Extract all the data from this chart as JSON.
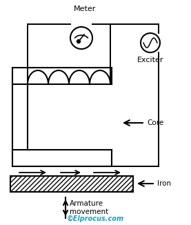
{
  "bg_color": "#ffffff",
  "line_color": "#000000",
  "cyan_color": "#1a9fbf",
  "meter_label": "Meter",
  "exciter_label": "Exciter",
  "core_label": "Core",
  "iron_label": "Iron",
  "armature_label": "Armature\nmovement",
  "copyright": "©Elprocus.com",
  "figsize": [
    2.77,
    3.26
  ],
  "dpi": 100,
  "lw": 1.4
}
